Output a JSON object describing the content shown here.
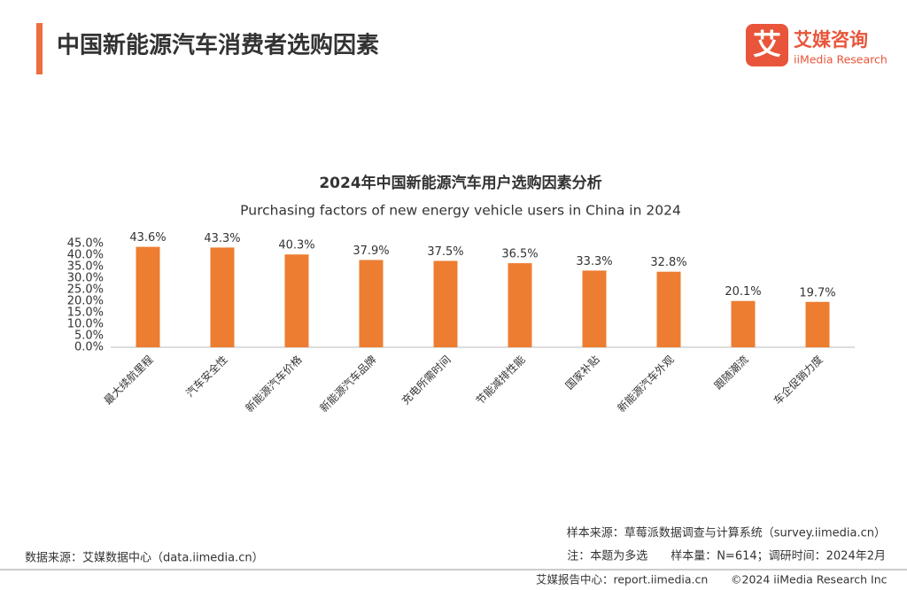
{
  "header": {
    "title": "中国新能源汽车消费者选购因素",
    "logo_mark": "艾",
    "logo_name": "艾媒咨询",
    "logo_en": "iiMedia Research"
  },
  "chart_data": {
    "type": "bar",
    "title": "2024年中国新能源汽车用户选购因素分析",
    "subtitle": "Purchasing factors of new energy vehicle users in China in 2024",
    "categories": [
      "最大续航里程",
      "汽车安全性",
      "新能源汽车价格",
      "新能源汽车品牌",
      "充电所需时间",
      "节能减排性能",
      "国家补贴",
      "新能源汽车外观",
      "跟随潮流",
      "车企促销力度"
    ],
    "values": [
      43.6,
      43.3,
      40.3,
      37.9,
      37.5,
      36.5,
      33.3,
      32.8,
      20.1,
      19.7
    ],
    "value_labels": [
      "43.6%",
      "43.3%",
      "40.3%",
      "37.9%",
      "37.5%",
      "36.5%",
      "33.3%",
      "32.8%",
      "20.1%",
      "19.7%"
    ],
    "color": "#ed7d31",
    "ylim": [
      0,
      45
    ],
    "yticks": [
      {
        "value": 0,
        "label": "0.0%"
      },
      {
        "value": 5,
        "label": "5.0%"
      },
      {
        "value": 10,
        "label": "10.0%"
      },
      {
        "value": 15,
        "label": "15.0%"
      },
      {
        "value": 20,
        "label": "20.0%"
      },
      {
        "value": 25,
        "label": "25.0%"
      },
      {
        "value": 30,
        "label": "30.0%"
      },
      {
        "value": 35,
        "label": "35.0%"
      },
      {
        "value": 40,
        "label": "40.0%"
      },
      {
        "value": 45,
        "label": "45.0%"
      }
    ]
  },
  "footer": {
    "data_source": "数据来源：艾媒数据中心（data.iimedia.cn）",
    "sample_source": "样本来源：草莓派数据调查与计算系统（survey.iimedia.cn）",
    "note": "注：本题为多选　　样本量：N=614；调研时间：2024年2月",
    "report_center": "艾媒报告中心：report.iimedia.cn",
    "copyright": "©2024  iiMedia Research  Inc"
  }
}
